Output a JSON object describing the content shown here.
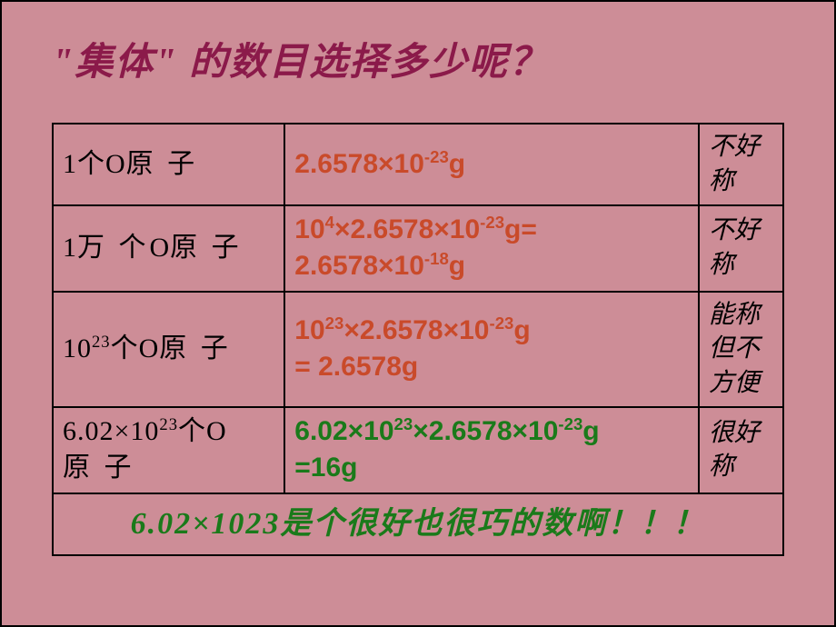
{
  "title": "\"集体\" 的数目选择多少呢？",
  "rows": [
    {
      "c1_html": "1个O<span class='atom'>原 子</span>",
      "c2_html": "2.6578×10<sup>-23</sup>g",
      "c2_color": "red",
      "c3": "不好称"
    },
    {
      "c1_html": "1<span class='atom'>万 个</span>O<span class='atom'>原 子</span>",
      "c2_html": "10<sup>4</sup>×2.6578×10<sup>-23</sup>g=<br>2.6578×10<sup>-18</sup>g",
      "c2_color": "red",
      "c3": "不好称"
    },
    {
      "c1_html": "10<sup>23</sup>个O<span class='atom'>原 子</span>",
      "c2_html": "10<sup>23</sup>×2.6578×10<sup>-23</sup>g<br>= 2.6578g",
      "c2_color": "red",
      "c3": "能称但不方便"
    },
    {
      "c1_html": "6.02×10<sup>23</sup>个O<br><span class='atom'>原 子</span>",
      "c2_html": "6.02×10<sup>23</sup>×2.6578×10<sup>-23</sup>g<br>=16g",
      "c2_color": "green",
      "c3": "很好称"
    }
  ],
  "footer": "6.02×1023是个很好也很巧的数啊！！！",
  "colors": {
    "background": "#cd8d97",
    "title": "#8b1a4a",
    "red": "#c94a2a",
    "green": "#1a7a1a",
    "border": "#000000"
  }
}
